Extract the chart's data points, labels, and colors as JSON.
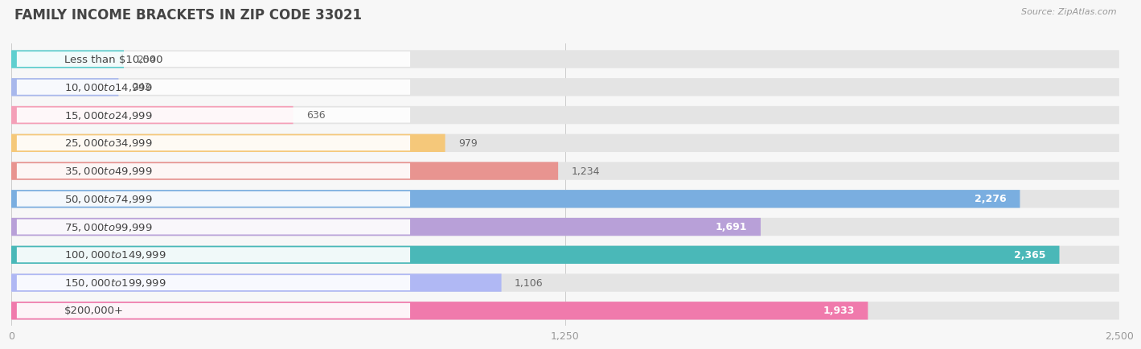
{
  "title": "FAMILY INCOME BRACKETS IN ZIP CODE 33021",
  "source": "Source: ZipAtlas.com",
  "categories": [
    "Less than $10,000",
    "$10,000 to $14,999",
    "$15,000 to $24,999",
    "$25,000 to $34,999",
    "$35,000 to $49,999",
    "$50,000 to $74,999",
    "$75,000 to $99,999",
    "$100,000 to $149,999",
    "$150,000 to $199,999",
    "$200,000+"
  ],
  "values": [
    254,
    242,
    636,
    979,
    1234,
    2276,
    1691,
    2365,
    1106,
    1933
  ],
  "bar_colors": [
    "#5ecfcf",
    "#a8b8ec",
    "#f4a0b8",
    "#f5c87a",
    "#e89490",
    "#7aaee0",
    "#b8a0d8",
    "#4ab8b8",
    "#b0b8f4",
    "#f07aac"
  ],
  "xlim": [
    0,
    2500
  ],
  "xticks": [
    0,
    1250,
    2500
  ],
  "xtick_labels": [
    "0",
    "1,250",
    "2,500"
  ],
  "background_color": "#f7f7f7",
  "bar_bg_color": "#e4e4e4",
  "title_fontsize": 12,
  "label_fontsize": 9.5,
  "value_fontsize": 9
}
